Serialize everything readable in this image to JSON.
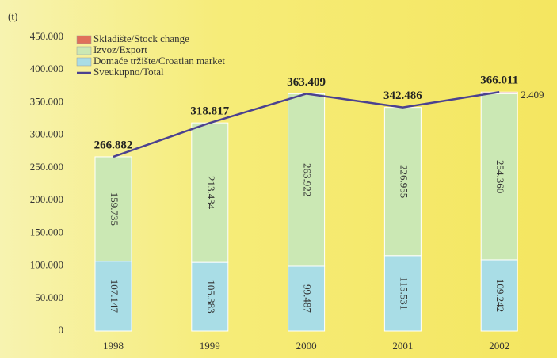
{
  "chart_data": {
    "type": "stacked-bar-line",
    "y_unit": "(t)",
    "categories": [
      "1998",
      "1999",
      "2000",
      "2001",
      "2002"
    ],
    "ylim": [
      0,
      450000
    ],
    "yticks": [
      0,
      {
        "value": 50000,
        "label": "50.000"
      },
      {
        "value": 100000,
        "label": "100.000"
      },
      {
        "value": 150000,
        "label": "150.000"
      },
      {
        "value": 200000,
        "label": "200.000"
      },
      {
        "value": 250000,
        "label": "250.000"
      },
      {
        "value": 300000,
        "label": "300.000"
      },
      {
        "value": 350000,
        "label": "350.000"
      },
      {
        "value": 400000,
        "label": "400.000"
      },
      {
        "value": 450000,
        "label": "450.000"
      }
    ],
    "series": [
      {
        "name": "Domaće tržište/Croatian market",
        "color": "#a9dde6",
        "values": [
          107147,
          105383,
          99487,
          115531,
          109242
        ],
        "value_labels": [
          "107.147",
          "105.383",
          "99.487",
          "115.531",
          "109.242"
        ]
      },
      {
        "name": "Izvoz/Export",
        "color": "#cbe8b4",
        "values": [
          159735,
          213434,
          263922,
          226955,
          254360
        ],
        "value_labels": [
          "159.735",
          "213.434",
          "263.922",
          "226.955",
          "254.360"
        ]
      },
      {
        "name": "Skladište/Stock change",
        "color": "#e0705a",
        "values": [
          null,
          null,
          null,
          null,
          2409
        ],
        "value_labels": [
          null,
          null,
          null,
          null,
          "2.409"
        ]
      }
    ],
    "total": {
      "name": "Sveukupno/Total",
      "color": "#4b4190",
      "values": [
        266882,
        318817,
        363409,
        342486,
        366011
      ],
      "value_labels": [
        "266.882",
        "318.817",
        "363.409",
        "342.486",
        "366.011"
      ]
    }
  }
}
